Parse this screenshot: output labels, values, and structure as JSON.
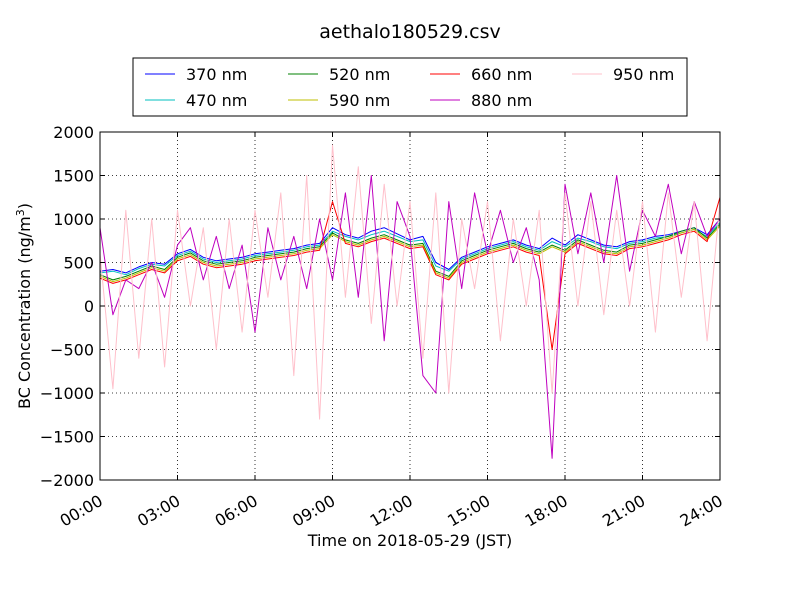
{
  "chart_data": {
    "type": "line",
    "title": "aethalo180529.csv",
    "xlabel": "Time on 2018-05-29 (JST)",
    "ylabel": "BC Concentration (ng/m",
    "ylabel_sup": "3",
    "ylabel_end": ")",
    "xlim_hours": [
      0,
      24
    ],
    "ylim": [
      -2000,
      2000
    ],
    "x_tick_labels": [
      "00:00",
      "03:00",
      "06:00",
      "09:00",
      "12:00",
      "15:00",
      "18:00",
      "21:00",
      "24:00"
    ],
    "y_tick_labels": [
      "2000",
      "1500",
      "1000",
      "500",
      "0",
      "−500",
      "−1000",
      "−1500",
      "−2000"
    ],
    "grid": true,
    "legend_position": "top",
    "series": [
      {
        "name": "370 nm",
        "color": "#0000ff",
        "x": [
          0.0,
          0.5,
          1.0,
          1.5,
          2.0,
          2.5,
          3.0,
          3.5,
          4.0,
          4.5,
          5.0,
          5.5,
          6.0,
          6.5,
          7.0,
          7.5,
          8.0,
          8.5,
          9.0,
          9.5,
          10.0,
          10.5,
          11.0,
          11.5,
          12.0,
          12.5,
          13.0,
          13.5,
          14.0,
          14.5,
          15.0,
          15.5,
          16.0,
          16.5,
          17.0,
          17.5,
          18.0,
          18.5,
          19.0,
          19.5,
          20.0,
          20.5,
          21.0,
          21.5,
          22.0,
          22.5,
          23.0,
          23.5,
          24.0
        ],
        "y": [
          400,
          420,
          380,
          450,
          500,
          480,
          600,
          650,
          560,
          520,
          540,
          560,
          600,
          620,
          640,
          660,
          700,
          720,
          900,
          820,
          780,
          860,
          900,
          830,
          760,
          800,
          500,
          420,
          560,
          620,
          680,
          720,
          760,
          700,
          660,
          780,
          700,
          820,
          760,
          700,
          680,
          740,
          760,
          800,
          820,
          860,
          900,
          820,
          1000
        ]
      },
      {
        "name": "470 nm",
        "color": "#00bfbf",
        "x": [
          0.0,
          0.5,
          1.0,
          1.5,
          2.0,
          2.5,
          3.0,
          3.5,
          4.0,
          4.5,
          5.0,
          5.5,
          6.0,
          6.5,
          7.0,
          7.5,
          8.0,
          8.5,
          9.0,
          9.5,
          10.0,
          10.5,
          11.0,
          11.5,
          12.0,
          12.5,
          13.0,
          13.5,
          14.0,
          14.5,
          15.0,
          15.5,
          16.0,
          16.5,
          17.0,
          17.5,
          18.0,
          18.5,
          19.0,
          19.5,
          20.0,
          20.5,
          21.0,
          21.5,
          22.0,
          22.5,
          23.0,
          23.5,
          24.0
        ],
        "y": [
          380,
          400,
          360,
          430,
          480,
          460,
          580,
          630,
          540,
          500,
          520,
          540,
          580,
          600,
          620,
          640,
          680,
          700,
          860,
          800,
          760,
          820,
          860,
          800,
          740,
          760,
          460,
          400,
          540,
          600,
          660,
          700,
          740,
          680,
          640,
          740,
          680,
          780,
          740,
          680,
          660,
          720,
          740,
          780,
          800,
          840,
          880,
          800,
          960
        ]
      },
      {
        "name": "520 nm",
        "color": "#008000",
        "x": [
          0.0,
          0.5,
          1.0,
          1.5,
          2.0,
          2.5,
          3.0,
          3.5,
          4.0,
          4.5,
          5.0,
          5.5,
          6.0,
          6.5,
          7.0,
          7.5,
          8.0,
          8.5,
          9.0,
          9.5,
          10.0,
          10.5,
          11.0,
          11.5,
          12.0,
          12.5,
          13.0,
          13.5,
          14.0,
          14.5,
          15.0,
          15.5,
          16.0,
          16.5,
          17.0,
          17.5,
          18.0,
          18.5,
          19.0,
          19.5,
          20.0,
          20.5,
          21.0,
          21.5,
          22.0,
          22.5,
          23.0,
          23.5,
          24.0
        ],
        "y": [
          360,
          300,
          340,
          400,
          460,
          420,
          560,
          610,
          520,
          480,
          500,
          520,
          560,
          580,
          600,
          620,
          660,
          680,
          840,
          760,
          720,
          780,
          820,
          760,
          700,
          720,
          400,
          340,
          520,
          580,
          640,
          680,
          720,
          660,
          620,
          700,
          640,
          760,
          700,
          640,
          620,
          700,
          720,
          760,
          800,
          860,
          900,
          780,
          940
        ]
      },
      {
        "name": "590 nm",
        "color": "#bfbf00",
        "x": [
          0.0,
          0.5,
          1.0,
          1.5,
          2.0,
          2.5,
          3.0,
          3.5,
          4.0,
          4.5,
          5.0,
          5.5,
          6.0,
          6.5,
          7.0,
          7.5,
          8.0,
          8.5,
          9.0,
          9.5,
          10.0,
          10.5,
          11.0,
          11.5,
          12.0,
          12.5,
          13.0,
          13.5,
          14.0,
          14.5,
          15.0,
          15.5,
          16.0,
          16.5,
          17.0,
          17.5,
          18.0,
          18.5,
          19.0,
          19.5,
          20.0,
          20.5,
          21.0,
          21.5,
          22.0,
          22.5,
          23.0,
          23.5,
          24.0
        ],
        "y": [
          340,
          280,
          320,
          380,
          440,
          400,
          540,
          590,
          500,
          460,
          480,
          500,
          540,
          560,
          580,
          600,
          640,
          660,
          820,
          740,
          700,
          760,
          800,
          740,
          680,
          700,
          380,
          320,
          500,
          560,
          620,
          660,
          700,
          640,
          600,
          680,
          620,
          740,
          680,
          620,
          600,
          680,
          700,
          740,
          780,
          840,
          880,
          760,
          920
        ]
      },
      {
        "name": "660 nm",
        "color": "#ff0000",
        "x": [
          0.0,
          0.5,
          1.0,
          1.5,
          2.0,
          2.5,
          3.0,
          3.5,
          4.0,
          4.5,
          5.0,
          5.5,
          6.0,
          6.5,
          7.0,
          7.5,
          8.0,
          8.5,
          9.0,
          9.5,
          10.0,
          10.5,
          11.0,
          11.5,
          12.0,
          12.5,
          13.0,
          13.5,
          14.0,
          14.5,
          15.0,
          15.5,
          16.0,
          16.5,
          17.0,
          17.5,
          18.0,
          18.5,
          19.0,
          19.5,
          20.0,
          20.5,
          21.0,
          21.5,
          22.0,
          22.5,
          23.0,
          23.5,
          24.0
        ],
        "y": [
          320,
          260,
          300,
          360,
          420,
          380,
          520,
          570,
          480,
          440,
          460,
          480,
          520,
          540,
          560,
          580,
          620,
          640,
          1200,
          720,
          680,
          740,
          780,
          720,
          660,
          680,
          360,
          300,
          480,
          540,
          600,
          640,
          680,
          620,
          580,
          -500,
          600,
          720,
          660,
          600,
          580,
          660,
          680,
          720,
          760,
          820,
          860,
          740,
          1250
        ]
      },
      {
        "name": "880 nm",
        "color": "#bf00bf",
        "x": [
          0.0,
          0.5,
          1.0,
          1.5,
          2.0,
          2.5,
          3.0,
          3.5,
          4.0,
          4.5,
          5.0,
          5.5,
          6.0,
          6.5,
          7.0,
          7.5,
          8.0,
          8.5,
          9.0,
          9.5,
          10.0,
          10.5,
          11.0,
          11.5,
          12.0,
          12.5,
          13.0,
          13.5,
          14.0,
          14.5,
          15.0,
          15.5,
          16.0,
          16.5,
          17.0,
          17.5,
          18.0,
          18.5,
          19.0,
          19.5,
          20.0,
          20.5,
          21.0,
          21.5,
          22.0,
          22.5,
          23.0,
          23.5,
          24.0
        ],
        "y": [
          900,
          -100,
          300,
          200,
          500,
          100,
          700,
          900,
          300,
          800,
          200,
          700,
          -300,
          900,
          300,
          800,
          200,
          1000,
          300,
          1300,
          100,
          1500,
          -400,
          1200,
          800,
          -800,
          -1000,
          1200,
          200,
          1300,
          600,
          1100,
          500,
          900,
          300,
          -1750,
          1400,
          600,
          1300,
          500,
          1500,
          400,
          1100,
          800,
          1400,
          600,
          1200,
          800,
          1000
        ]
      },
      {
        "name": "950 nm",
        "color": "#ffc0cb",
        "x": [
          0.0,
          0.5,
          1.0,
          1.5,
          2.0,
          2.5,
          3.0,
          3.5,
          4.0,
          4.5,
          5.0,
          5.5,
          6.0,
          6.5,
          7.0,
          7.5,
          8.0,
          8.5,
          9.0,
          9.5,
          10.0,
          10.5,
          11.0,
          11.5,
          12.0,
          12.5,
          13.0,
          13.5,
          14.0,
          14.5,
          15.0,
          15.5,
          16.0,
          16.5,
          17.0,
          17.5,
          18.0,
          18.5,
          19.0,
          19.5,
          20.0,
          20.5,
          21.0,
          21.5,
          22.0,
          22.5,
          23.0,
          23.5,
          24.0
        ],
        "y": [
          600,
          -950,
          1100,
          -600,
          1000,
          -700,
          1100,
          0,
          900,
          -500,
          1000,
          -300,
          1100,
          100,
          1300,
          -800,
          1500,
          -1300,
          1850,
          100,
          1600,
          -200,
          1400,
          0,
          1200,
          -600,
          1300,
          -1000,
          1000,
          200,
          1200,
          -400,
          1000,
          0,
          1100,
          -1000,
          1300,
          0,
          1200,
          -100,
          1100,
          0,
          1200,
          -300,
          1300,
          100,
          1200,
          -400,
          1200
        ]
      }
    ]
  }
}
